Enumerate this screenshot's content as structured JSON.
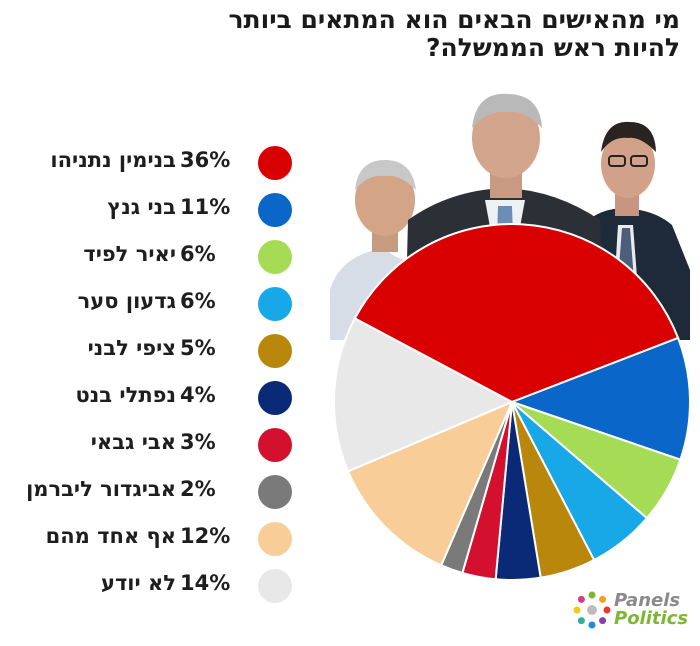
{
  "title": {
    "line1": "מי מהאישים הבאים הוא המתאים ביותר",
    "line2": "להיות ראש הממשלה?"
  },
  "chart_data": {
    "type": "pie",
    "title": "מי מהאישים הבאים הוא המתאים ביותר להיות ראש הממשלה?",
    "unit": "%",
    "slices": [
      {
        "label": "בנימין נתניהו",
        "value": 36,
        "display": "36%",
        "color": "#d80000"
      },
      {
        "label": "בני גנץ",
        "value": 11,
        "display": "11%",
        "color": "#0a66c8"
      },
      {
        "label": "יאיר לפיד",
        "value": 6,
        "display": "6%",
        "color": "#a6dc55"
      },
      {
        "label": "גדעון סער",
        "value": 6,
        "display": "6%",
        "color": "#18a8e8"
      },
      {
        "label": "ציפי לבני",
        "value": 5,
        "display": "5%",
        "color": "#b8870b"
      },
      {
        "label": "נפתלי בנט",
        "value": 4,
        "display": "4%",
        "color": "#0a2a78"
      },
      {
        "label": "אבי גבאי",
        "value": 3,
        "display": "3%",
        "color": "#d3102e"
      },
      {
        "label": "אביגדור ליברמן",
        "value": 2,
        "display": "2%",
        "color": "#7a7a7a"
      },
      {
        "label": "אף אחד מהם",
        "value": 12,
        "display": "12%",
        "color": "#f8cd98"
      },
      {
        "label": "לא יודע",
        "value": 14,
        "display": "14%",
        "color": "#e8e8e8"
      }
    ],
    "legend_position": "left"
  },
  "logo": {
    "line1": "Panels",
    "line2": "Politics"
  }
}
